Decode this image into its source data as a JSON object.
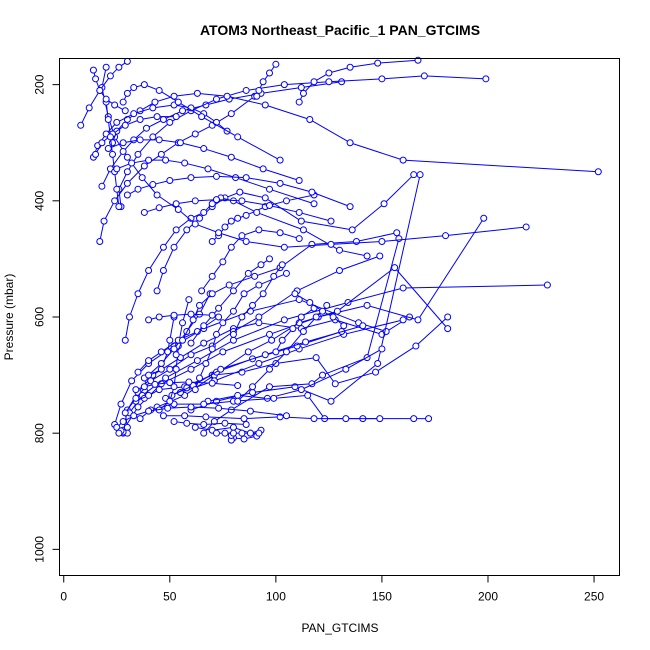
{
  "chart_data": {
    "type": "line",
    "title": "ATOM3 Northeast_Pacific_1 PAN_GTCIMS",
    "xlabel": "PAN_GTCIMS",
    "ylabel": "Pressure (mbar)",
    "xlim": [
      -2,
      262
    ],
    "ylim": [
      1045,
      155
    ],
    "y_reversed": true,
    "xticks": [
      0,
      50,
      100,
      150,
      200,
      250
    ],
    "yticks": [
      200,
      400,
      600,
      800,
      1000
    ],
    "grid": false,
    "colors": {
      "series": "#0000ff",
      "axis": "#000000"
    },
    "series": [
      {
        "marker": "open-circle",
        "x": [
          28,
          30,
          35,
          42,
          55,
          66,
          80,
          92,
          112,
          128,
          150,
          163
        ],
        "y": [
          800,
          760,
          730,
          700,
          670,
          645,
          620,
          610,
          620,
          605,
          630,
          600
        ]
      },
      {
        "marker": "open-circle",
        "x": [
          24,
          27,
          32,
          40,
          52,
          66,
          88,
          111,
          139,
          152
        ],
        "y": [
          785,
          750,
          710,
          680,
          650,
          620,
          590,
          570,
          610,
          625
        ]
      },
      {
        "marker": "open-circle",
        "x": [
          28,
          35,
          46,
          60,
          75,
          97,
          120,
          143,
          167,
          198
        ],
        "y": [
          795,
          755,
          715,
          690,
          660,
          630,
          600,
          580,
          605,
          430
        ]
      },
      {
        "marker": "open-circle",
        "x": [
          31,
          37,
          48,
          63,
          80,
          104,
          134,
          160,
          228
        ],
        "y": [
          765,
          735,
          705,
          675,
          640,
          605,
          575,
          550,
          545
        ]
      },
      {
        "marker": "open-circle",
        "x": [
          38,
          45,
          57,
          70,
          84,
          100,
          119,
          128,
          147,
          166,
          181
        ],
        "y": [
          740,
          725,
          720,
          700,
          695,
          680,
          670,
          715,
          695,
          650,
          600
        ]
      },
      {
        "marker": "open-circle",
        "x": [
          44,
          57,
          71,
          87,
          98,
          111,
          129,
          156,
          181
        ],
        "y": [
          755,
          735,
          700,
          660,
          640,
          610,
          590,
          515,
          620
        ]
      },
      {
        "marker": "open-circle",
        "x": [
          60,
          72,
          89,
          109,
          126,
          148,
          168
        ],
        "y": [
          760,
          745,
          730,
          720,
          745,
          680,
          355
        ]
      },
      {
        "marker": "open-circle",
        "x": [
          66,
          71,
          79,
          97,
          117,
          122,
          143,
          158
        ],
        "y": [
          800,
          780,
          760,
          720,
          715,
          700,
          670,
          465
        ]
      },
      {
        "marker": "open-circle",
        "x": [
          55,
          71,
          92,
          111,
          132,
          160
        ],
        "y": [
          730,
          710,
          680,
          655,
          630,
          605
        ]
      },
      {
        "marker": "open-circle",
        "x": [
          48,
          58,
          72,
          89,
          110,
          131
        ],
        "y": [
          740,
          722,
          695,
          672,
          650,
          625
        ]
      },
      {
        "marker": "open-circle",
        "x": [
          51,
          61,
          74,
          95,
          114,
          141
        ],
        "y": [
          735,
          718,
          690,
          665,
          643,
          615
        ]
      },
      {
        "marker": "open-circle",
        "x": [
          68,
          82,
          96,
          112,
          133,
          150
        ],
        "y": [
          745,
          735,
          740,
          725,
          690,
          655
        ]
      },
      {
        "marker": "open-circle",
        "x": [
          36,
          41,
          52,
          66,
          80,
          99,
          115,
          123,
          141,
          165,
          172
        ],
        "y": [
          775,
          760,
          750,
          750,
          745,
          740,
          735,
          775,
          775,
          775,
          775
        ]
      },
      {
        "marker": "open-circle",
        "x": [
          47,
          57,
          67,
          85,
          102,
          118,
          133,
          149
        ],
        "y": [
          770,
          770,
          772,
          775,
          772,
          775,
          775,
          775
        ]
      },
      {
        "marker": "open-circle",
        "x": [
          62,
          70,
          80,
          88,
          93,
          91,
          85,
          80,
          79,
          79
        ],
        "y": [
          790,
          795,
          790,
          800,
          795,
          805,
          810,
          808,
          812,
          804
        ]
      },
      {
        "marker": "open-circle",
        "x": [
          52,
          58,
          66,
          76,
          86
        ],
        "y": [
          780,
          783,
          785,
          783,
          785
        ]
      },
      {
        "marker": "open-circle",
        "x": [
          45,
          50,
          52,
          53,
          54,
          56,
          59
        ],
        "y": [
          760,
          745,
          720,
          690,
          650,
          610,
          570
        ]
      },
      {
        "marker": "open-circle",
        "x": [
          34,
          40,
          38,
          46,
          49,
          50,
          52
        ],
        "y": [
          745,
          735,
          705,
          690,
          660,
          640,
          600
        ]
      },
      {
        "marker": "open-circle",
        "x": [
          40,
          46,
          52,
          58,
          64,
          69
        ],
        "y": [
          700,
          680,
          655,
          625,
          595,
          560
        ]
      },
      {
        "marker": "open-circle",
        "x": [
          35,
          40,
          46,
          54,
          63,
          73
        ],
        "y": [
          695,
          675,
          660,
          640,
          625,
          600
        ]
      },
      {
        "marker": "open-circle",
        "x": [
          30,
          29,
          34,
          41,
          50,
          60,
          70,
          80,
          92,
          110,
          130,
          149
        ],
        "y": [
          790,
          765,
          740,
          710,
          690,
          665,
          650,
          625,
          600,
          555,
          520,
          495
        ]
      },
      {
        "marker": "open-circle",
        "x": [
          53,
          56,
          61,
          64,
          70,
          78,
          90,
          102,
          117,
          138,
          157
        ],
        "y": [
          665,
          640,
          605,
          580,
          560,
          545,
          530,
          515,
          475,
          470,
          455
        ]
      },
      {
        "marker": "open-circle",
        "x": [
          62,
          64,
          67,
          70,
          72,
          75,
          80,
          85,
          92,
          105
        ],
        "y": [
          725,
          705,
          680,
          655,
          630,
          610,
          590,
          560,
          545,
          525
        ]
      },
      {
        "marker": "open-circle",
        "x": [
          82,
          89,
          97,
          105,
          113,
          119,
          124
        ],
        "y": [
          745,
          720,
          690,
          660,
          625,
          600,
          580
        ]
      },
      {
        "marker": "open-circle",
        "x": [
          100,
          103,
          108,
          112,
          118
        ],
        "y": [
          660,
          640,
          620,
          600,
          585
        ]
      },
      {
        "marker": "open-circle",
        "x": [
          80,
          84,
          89,
          94,
          99,
          103
        ],
        "y": [
          630,
          600,
          580,
          560,
          530,
          510
        ]
      },
      {
        "marker": "open-circle",
        "x": [
          60,
          66,
          73,
          80,
          87,
          93,
          97
        ],
        "y": [
          645,
          615,
          585,
          555,
          525,
          510,
          500
        ]
      },
      {
        "marker": "open-circle",
        "x": [
          65,
          70,
          75,
          79,
          84,
          92,
          102,
          111
        ],
        "y": [
          555,
          530,
          505,
          480,
          460,
          450,
          455,
          465
        ]
      },
      {
        "marker": "open-circle",
        "x": [
          70,
          73,
          76,
          79,
          82,
          86,
          95,
          105,
          118
        ],
        "y": [
          470,
          460,
          445,
          435,
          430,
          425,
          410,
          400,
          390
        ]
      },
      {
        "marker": "open-circle",
        "x": [
          44,
          47,
          52,
          58,
          64,
          70,
          76,
          83,
          95,
          112,
          136,
          151,
          165
        ],
        "y": [
          555,
          520,
          480,
          450,
          430,
          410,
          395,
          385,
          395,
          435,
          450,
          405,
          355
        ]
      },
      {
        "marker": "open-circle",
        "x": [
          29,
          31,
          35,
          40,
          47,
          53,
          60,
          66,
          70,
          74,
          80,
          91,
          113,
          130,
          143
        ],
        "y": [
          640,
          600,
          560,
          520,
          480,
          450,
          430,
          420,
          405,
          395,
          400,
          420,
          450,
          485,
          495
        ]
      },
      {
        "marker": "open-circle",
        "x": [
          20,
          18,
          21,
          24,
          30,
          37,
          44,
          54,
          62,
          73,
          86,
          104,
          126,
          150,
          180,
          218
        ],
        "y": [
          170,
          205,
          255,
          290,
          325,
          360,
          390,
          415,
          440,
          455,
          470,
          480,
          475,
          470,
          460,
          445
        ]
      },
      {
        "marker": "open-circle",
        "x": [
          17,
          19,
          24,
          30,
          38,
          46,
          54,
          62,
          70,
          79,
          90
        ],
        "y": [
          470,
          435,
          400,
          370,
          340,
          320,
          300,
          285,
          270,
          250,
          220
        ]
      },
      {
        "marker": "open-circle",
        "x": [
          18,
          22,
          28,
          33,
          39,
          47,
          56,
          67,
          78,
          93,
          112,
          131
        ],
        "y": [
          375,
          345,
          315,
          295,
          275,
          260,
          245,
          235,
          225,
          215,
          205,
          195
        ]
      },
      {
        "marker": "open-circle",
        "x": [
          27,
          26,
          30,
          35,
          42,
          50,
          60,
          72,
          86,
          104,
          125,
          150,
          170,
          199
        ],
        "y": [
          410,
          380,
          350,
          320,
          290,
          265,
          245,
          225,
          210,
          200,
          195,
          190,
          185,
          190
        ]
      },
      {
        "marker": "open-circle",
        "x": [
          23,
          25,
          30,
          36,
          43,
          52,
          63,
          77,
          95,
          116,
          135,
          160,
          252
        ],
        "y": [
          300,
          280,
          260,
          245,
          230,
          220,
          215,
          220,
          235,
          260,
          300,
          330,
          350
        ]
      },
      {
        "marker": "open-circle",
        "x": [
          14,
          16,
          20,
          25,
          33,
          42,
          52,
          60,
          66,
          72,
          77
        ],
        "y": [
          325,
          305,
          285,
          265,
          250,
          240,
          235,
          240,
          250,
          265,
          280
        ]
      },
      {
        "marker": "open-circle",
        "x": [
          15,
          18,
          23,
          29,
          36,
          44,
          53
        ],
        "y": [
          320,
          300,
          285,
          270,
          260,
          255,
          255
        ]
      },
      {
        "marker": "open-circle",
        "x": [
          8,
          12,
          17,
          22,
          26,
          30
        ],
        "y": [
          270,
          240,
          210,
          185,
          170,
          160
        ]
      },
      {
        "marker": "open-circle",
        "x": [
          26,
          25,
          24,
          23,
          22,
          21,
          20
        ],
        "y": [
          410,
          380,
          350,
          320,
          290,
          260,
          230
        ]
      },
      {
        "marker": "open-circle",
        "x": [
          28,
          30,
          33,
          38,
          45,
          54,
          65,
          82,
          102
        ],
        "y": [
          230,
          215,
          205,
          200,
          210,
          230,
          255,
          290,
          330
        ]
      },
      {
        "marker": "open-circle",
        "x": [
          14,
          15,
          17,
          20,
          24,
          29
        ],
        "y": [
          175,
          190,
          210,
          225,
          235,
          245
        ]
      },
      {
        "marker": "open-circle",
        "x": [
          25,
          32,
          40,
          48,
          57,
          68,
          81,
          97,
          118
        ],
        "y": [
          345,
          335,
          330,
          330,
          335,
          345,
          360,
          380,
          405
        ]
      },
      {
        "marker": "open-circle",
        "x": [
          21,
          28,
          36,
          45,
          55,
          66,
          79,
          94,
          111
        ],
        "y": [
          310,
          300,
          295,
          295,
          300,
          310,
          325,
          345,
          365
        ]
      },
      {
        "marker": "open-circle",
        "x": [
          30,
          35,
          42,
          50,
          60,
          72,
          86,
          102,
          117,
          135
        ],
        "y": [
          390,
          380,
          372,
          365,
          360,
          358,
          360,
          370,
          385,
          410
        ]
      },
      {
        "marker": "open-circle",
        "x": [
          38,
          45,
          53,
          62,
          72,
          84,
          97,
          111,
          126
        ],
        "y": [
          420,
          412,
          405,
          400,
          398,
          400,
          408,
          420,
          435
        ]
      },
      {
        "marker": "open-circle",
        "x": [
          111,
          113,
          118,
          125,
          135,
          148,
          167
        ],
        "y": [
          230,
          215,
          195,
          180,
          170,
          163,
          158
        ]
      },
      {
        "marker": "open-circle",
        "x": [
          100,
          97,
          94,
          92,
          91
        ],
        "y": [
          165,
          180,
          195,
          210,
          220
        ]
      },
      {
        "marker": "open-circle",
        "x": [
          109,
          116,
          122,
          127,
          132
        ],
        "y": [
          560,
          575,
          590,
          600,
          615
        ]
      },
      {
        "marker": "open-circle",
        "x": [
          40,
          45,
          52,
          60,
          70
        ],
        "y": [
          605,
          600,
          597,
          595,
          597
        ]
      },
      {
        "marker": "open-circle",
        "x": [
          34,
          38,
          43,
          50,
          59,
          70,
          82
        ],
        "y": [
          725,
          720,
          716,
          713,
          712,
          714,
          718
        ]
      },
      {
        "marker": "open-circle",
        "x": [
          25,
          28,
          33,
          40,
          49,
          60,
          73,
          88,
          105
        ],
        "y": [
          790,
          780,
          770,
          762,
          757,
          755,
          757,
          762,
          770
        ]
      },
      {
        "marker": "open-circle",
        "x": [
          72,
          76,
          80,
          84,
          88,
          92
        ],
        "y": [
          800,
          800,
          800,
          800,
          800,
          800
        ]
      },
      {
        "marker": "open-circle",
        "x": [
          30,
          28,
          27,
          26
        ],
        "y": [
          800,
          798,
          796,
          800
        ]
      }
    ]
  }
}
